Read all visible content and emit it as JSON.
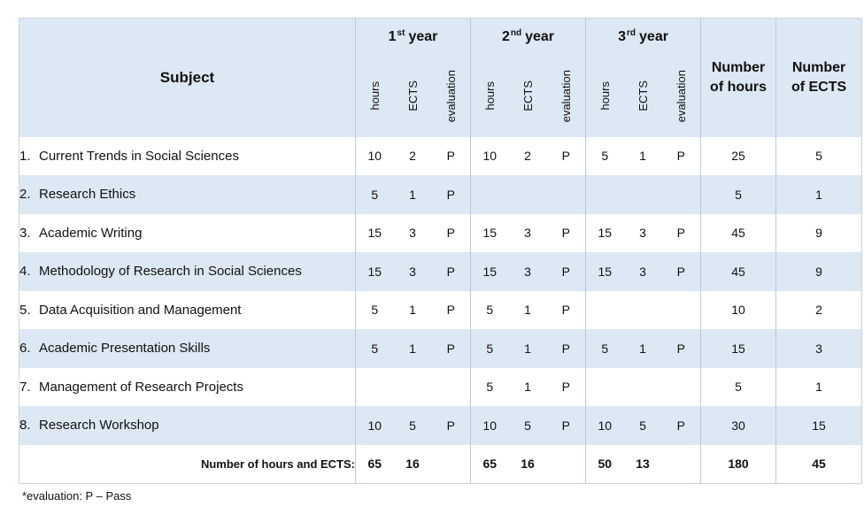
{
  "header": {
    "subject": "Subject",
    "years": [
      {
        "num": "1",
        "sup": "st",
        "word": "year"
      },
      {
        "num": "2",
        "sup": "nd",
        "word": "year"
      },
      {
        "num": "3",
        "sup": "rd",
        "word": "year"
      }
    ],
    "sub": {
      "hours": "hours",
      "ects": "ECTS",
      "evaluation": "evaluation"
    },
    "num_hours": [
      "Number",
      "of hours"
    ],
    "num_ects": [
      "Number",
      "of ECTS"
    ]
  },
  "rows": [
    {
      "n": "1.",
      "subject": "Current Trends in Social Sciences",
      "cells": [
        "10",
        "2",
        "P",
        "10",
        "2",
        "P",
        "5",
        "1",
        "P"
      ],
      "total_hours": "25",
      "total_ects": "5",
      "shade": "white"
    },
    {
      "n": "2.",
      "subject": "Research Ethics",
      "cells": [
        "5",
        "1",
        "P",
        "",
        "",
        "",
        "",
        "",
        ""
      ],
      "total_hours": "5",
      "total_ects": "1",
      "shade": "blue"
    },
    {
      "n": "3.",
      "subject": "Academic Writing",
      "cells": [
        "15",
        "3",
        "P",
        "15",
        "3",
        "P",
        "15",
        "3",
        "P"
      ],
      "total_hours": "45",
      "total_ects": "9",
      "shade": "white"
    },
    {
      "n": "4.",
      "subject": "Methodology of Research in Social Sciences",
      "cells": [
        "15",
        "3",
        "P",
        "15",
        "3",
        "P",
        "15",
        "3",
        "P"
      ],
      "total_hours": "45",
      "total_ects": "9",
      "shade": "blue"
    },
    {
      "n": "5.",
      "subject": "Data Acquisition and Management",
      "cells": [
        "5",
        "1",
        "P",
        "5",
        "1",
        "P",
        "",
        "",
        ""
      ],
      "total_hours": "10",
      "total_ects": "2",
      "shade": "white"
    },
    {
      "n": "6.",
      "subject": "Academic Presentation Skills",
      "cells": [
        "5",
        "1",
        "P",
        "5",
        "1",
        "P",
        "5",
        "1",
        "P"
      ],
      "total_hours": "15",
      "total_ects": "3",
      "shade": "blue"
    },
    {
      "n": "7.",
      "subject": "Management of Research Projects",
      "cells": [
        "",
        "",
        "",
        "5",
        "1",
        "P",
        "",
        "",
        ""
      ],
      "total_hours": "5",
      "total_ects": "1",
      "shade": "white"
    },
    {
      "n": "8.",
      "subject": "Research Workshop",
      "cells": [
        "10",
        "5",
        "P",
        "10",
        "5",
        "P",
        "10",
        "5",
        "P"
      ],
      "total_hours": "30",
      "total_ects": "15",
      "shade": "blue"
    }
  ],
  "totals": {
    "label": "Number of hours and ECTS:",
    "cells": [
      "65",
      "16",
      "",
      "65",
      "16",
      "",
      "50",
      "13",
      ""
    ],
    "total_hours": "180",
    "total_ects": "45"
  },
  "footnote": "*evaluation: P – Pass"
}
